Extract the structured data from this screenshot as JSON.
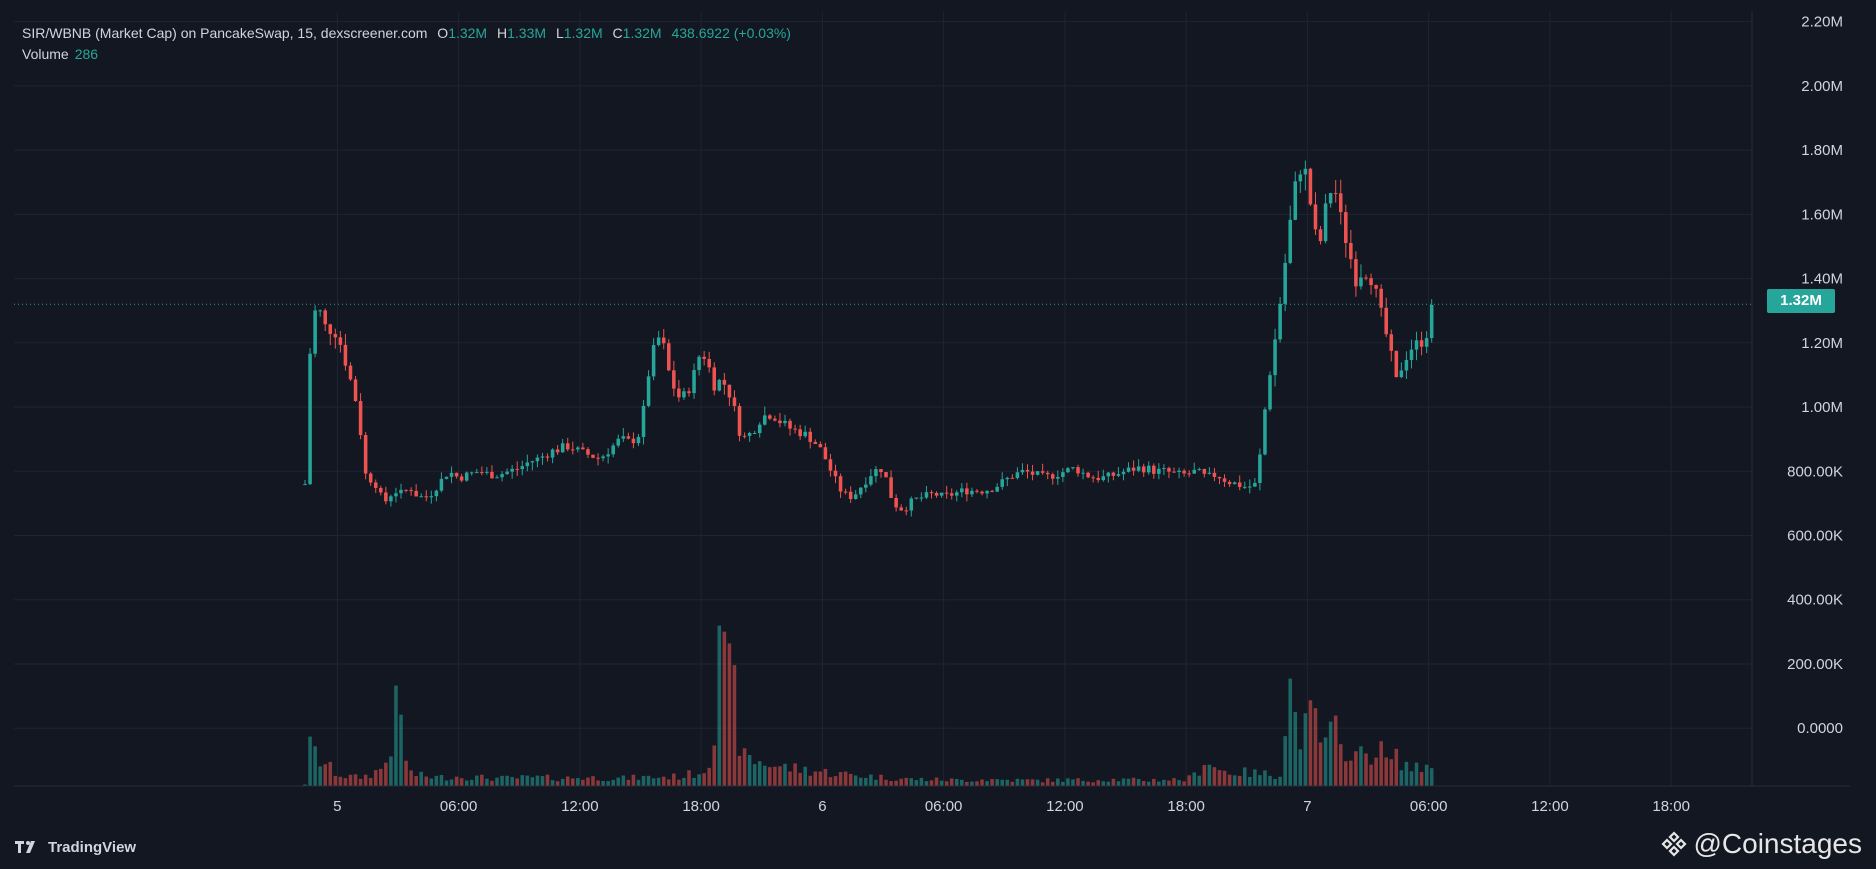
{
  "legend": {
    "symbol": "SIR/WBNB (Market Cap) on PancakeSwap, 15, dexscreener.com",
    "open_label": "O",
    "open": "1.32M",
    "high_label": "H",
    "high": "1.33M",
    "low_label": "L",
    "low": "1.32M",
    "close_label": "C",
    "close": "1.32M",
    "change": "438.6922 (+0.03%)",
    "volume_label": "Volume",
    "volume": "286"
  },
  "last_price_label": "1.32M",
  "footer": {
    "tradingview": "TradingView",
    "watermark": "@Coinstages"
  },
  "colors": {
    "background": "#131722",
    "up": "#26a69a",
    "down": "#ef5350",
    "grid": "#1f2430",
    "text": "#d1d4dc"
  },
  "icons": {
    "tradingview": "tradingview-logo-icon",
    "watermark": "binance-diamond-icon"
  },
  "chart_data": {
    "type": "candlestick",
    "title": "SIR/WBNB (Market Cap) on PancakeSwap, 15, dexscreener.com",
    "y_axis_ticks": [
      "2.20M",
      "2.00M",
      "1.80M",
      "1.60M",
      "1.40M",
      "1.20M",
      "1.00M",
      "800.00K",
      "600.00K",
      "400.00K",
      "200.00K",
      "0.0000"
    ],
    "y_tick_values": [
      2200000,
      2000000,
      1800000,
      1600000,
      1400000,
      1200000,
      1000000,
      800000,
      600000,
      400000,
      200000,
      0
    ],
    "ylim": [
      -180000,
      2230000
    ],
    "x_axis_ticks": [
      "5",
      "06:00",
      "12:00",
      "18:00",
      "6",
      "06:00",
      "12:00",
      "18:00",
      "7",
      "06:00",
      "12:00",
      "18:00"
    ],
    "x_tick_hours": [
      0,
      6,
      12,
      18,
      24,
      30,
      36,
      42,
      48,
      54,
      60,
      66
    ],
    "xlim_hours": [
      -16,
      70
    ],
    "last_price": 1320000,
    "series_path_hours": [
      -1.6,
      -1.3,
      -1.0,
      -0.6,
      0,
      0.5,
      1,
      1.4,
      1.9,
      2.3,
      2.8,
      3.2,
      3.6,
      4,
      4.5,
      5,
      5.5,
      6,
      6.5,
      7,
      7.5,
      8,
      8.5,
      9,
      9.5,
      10,
      10.5,
      11,
      11.5,
      12,
      12.5,
      13,
      13.5,
      14,
      14.5,
      15,
      15.5,
      16,
      16.5,
      17,
      17.5,
      18,
      18.3,
      18.7,
      19,
      19.5,
      20,
      20.5,
      21,
      21.5,
      22,
      22.5,
      23,
      23.5,
      24,
      24.5,
      25,
      25.5,
      26,
      26.5,
      27,
      27.5,
      28,
      28.5,
      29,
      29.5,
      30,
      30.5,
      31,
      31.5,
      32,
      32.5,
      33,
      33.5,
      34,
      34.5,
      35,
      35.5,
      36,
      36.5,
      37,
      37.5,
      38,
      38.5,
      39,
      39.5,
      40,
      40.5,
      41,
      41.5,
      42,
      42.5,
      43,
      43.5,
      44,
      44.5,
      45,
      45.5,
      46,
      46.5,
      47,
      47.3,
      47.6,
      48,
      48.3,
      48.6,
      49,
      49.3,
      49.6,
      50,
      50.4,
      50.8,
      51.2,
      51.6,
      52,
      52.4,
      52.8,
      53.2,
      53.6,
      54,
      54.2
    ],
    "series_path_values": [
      760000,
      1250000,
      1320000,
      1250000,
      1230000,
      1120000,
      1000000,
      790000,
      760000,
      700000,
      740000,
      730000,
      750000,
      720000,
      720000,
      760000,
      800000,
      780000,
      790000,
      800000,
      790000,
      790000,
      800000,
      810000,
      830000,
      840000,
      860000,
      870000,
      880000,
      860000,
      850000,
      840000,
      870000,
      900000,
      890000,
      920000,
      1150000,
      1230000,
      1080000,
      1020000,
      1070000,
      1180000,
      1140000,
      1060000,
      1090000,
      1030000,
      900000,
      920000,
      970000,
      980000,
      950000,
      930000,
      920000,
      900000,
      860000,
      790000,
      730000,
      720000,
      760000,
      800000,
      810000,
      700000,
      680000,
      710000,
      720000,
      730000,
      720000,
      730000,
      740000,
      740000,
      740000,
      750000,
      770000,
      790000,
      800000,
      790000,
      780000,
      790000,
      800000,
      810000,
      790000,
      780000,
      780000,
      790000,
      800000,
      810000,
      810000,
      800000,
      800000,
      790000,
      790000,
      800000,
      780000,
      790000,
      770000,
      760000,
      750000,
      760000,
      1050000,
      1250000,
      1500000,
      1650000,
      1750000,
      1720000,
      1550000,
      1500000,
      1650000,
      1700000,
      1600000,
      1500000,
      1400000,
      1430000,
      1400000,
      1300000,
      1200000,
      1080000,
      1150000,
      1190000,
      1200000,
      1240000,
      1320000
    ],
    "volume_path_hours": [
      -1.6,
      -1.3,
      -1.0,
      -0.7,
      -0.3,
      0,
      0.5,
      1,
      1.5,
      1.9,
      2.3,
      2.6,
      3,
      3.5,
      4,
      5,
      6,
      7,
      8,
      9,
      10,
      11,
      12,
      13,
      14,
      15,
      16,
      17,
      17.5,
      18,
      18.3,
      18.6,
      18.9,
      19.2,
      19.6,
      20,
      20.5,
      21,
      21.5,
      22,
      23,
      24,
      25,
      26,
      27,
      28,
      29,
      30,
      31,
      32,
      33,
      34,
      35,
      36,
      37,
      38,
      39,
      40,
      41,
      42,
      42.5,
      43,
      43.5,
      44,
      45,
      46,
      46.5,
      46.8,
      47,
      47.3,
      47.6,
      48,
      48.3,
      48.6,
      49,
      49.3,
      49.6,
      50,
      50.5,
      51,
      51.5,
      52,
      52.5,
      53,
      53.5,
      54,
      54.2
    ],
    "volume_path_values": [
      4000,
      95000,
      55000,
      50000,
      35000,
      25000,
      20000,
      18000,
      22000,
      30000,
      40000,
      75000,
      180000,
      30000,
      22000,
      18000,
      20000,
      18000,
      16000,
      17000,
      18000,
      16000,
      18000,
      17000,
      16000,
      18000,
      19000,
      20000,
      25000,
      30000,
      40000,
      90000,
      400000,
      220000,
      210000,
      60000,
      55000,
      50000,
      45000,
      40000,
      35000,
      30000,
      25000,
      22000,
      18000,
      15000,
      14000,
      13000,
      12000,
      14000,
      13000,
      12000,
      12000,
      13000,
      12000,
      14000,
      13000,
      12000,
      14000,
      13000,
      25000,
      60000,
      35000,
      30000,
      28000,
      25000,
      24000,
      30000,
      250000,
      160000,
      110000,
      120000,
      150000,
      100000,
      80000,
      130000,
      70000,
      90000,
      60000,
      70000,
      80000,
      50000,
      60000,
      40000,
      35000,
      45000,
      60000
    ]
  }
}
